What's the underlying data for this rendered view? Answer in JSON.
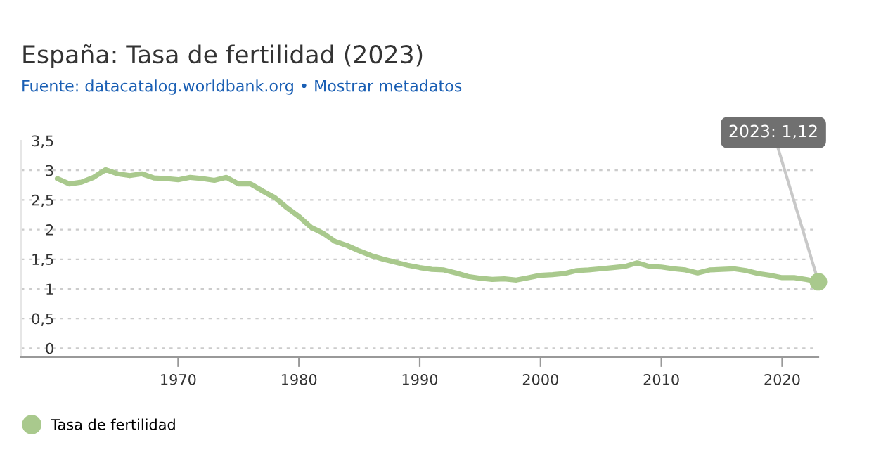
{
  "chart_data": {
    "type": "line",
    "title": "España: Tasa de fertilidad (2023)",
    "subtitle": "Fuente: datacatalog.worldbank.org • Mostrar metadatos",
    "x": [
      1960,
      1961,
      1962,
      1963,
      1964,
      1965,
      1966,
      1967,
      1968,
      1969,
      1970,
      1971,
      1972,
      1973,
      1974,
      1975,
      1976,
      1977,
      1978,
      1979,
      1980,
      1981,
      1982,
      1983,
      1984,
      1985,
      1986,
      1987,
      1988,
      1989,
      1990,
      1991,
      1992,
      1993,
      1994,
      1995,
      1996,
      1997,
      1998,
      1999,
      2000,
      2001,
      2002,
      2003,
      2004,
      2005,
      2006,
      2007,
      2008,
      2009,
      2010,
      2011,
      2012,
      2013,
      2014,
      2015,
      2016,
      2017,
      2018,
      2019,
      2020,
      2021,
      2022,
      2023
    ],
    "series": [
      {
        "name": "Tasa de fertilidad",
        "color": "#a9c98d",
        "values": [
          2.86,
          2.77,
          2.8,
          2.88,
          3.01,
          2.94,
          2.91,
          2.94,
          2.87,
          2.86,
          2.84,
          2.88,
          2.86,
          2.83,
          2.88,
          2.77,
          2.77,
          2.65,
          2.54,
          2.37,
          2.22,
          2.04,
          1.94,
          1.8,
          1.73,
          1.64,
          1.56,
          1.5,
          1.45,
          1.4,
          1.36,
          1.33,
          1.32,
          1.27,
          1.21,
          1.18,
          1.16,
          1.17,
          1.15,
          1.19,
          1.23,
          1.24,
          1.26,
          1.31,
          1.32,
          1.34,
          1.36,
          1.38,
          1.44,
          1.38,
          1.37,
          1.34,
          1.32,
          1.27,
          1.32,
          1.33,
          1.34,
          1.31,
          1.26,
          1.23,
          1.19,
          1.19,
          1.16,
          1.12
        ]
      }
    ],
    "annotations": [
      {
        "text": "2023: 1,12",
        "x": 2023,
        "y": 1.12
      }
    ],
    "xlim": [
      1957,
      2023
    ],
    "xticks": [
      1970,
      1980,
      1990,
      2000,
      2010,
      2020
    ],
    "ylim": [
      -0.15,
      3.5
    ],
    "yticks": [
      0,
      {
        "value": 0.5,
        "label": "0,5"
      },
      1,
      {
        "value": 1.5,
        "label": "1,5"
      },
      2,
      {
        "value": 2.5,
        "label": "2,5"
      },
      3,
      {
        "value": 3.5,
        "label": "3,5"
      }
    ],
    "grid": "y",
    "legend": "bottom left",
    "line_style": "solid",
    "marker": "none"
  }
}
